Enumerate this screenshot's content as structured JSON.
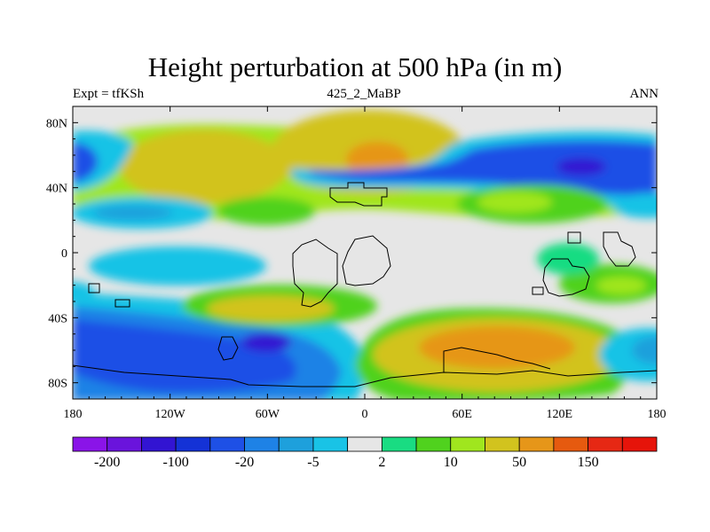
{
  "title": "Height perturbation at 500 hPa (in m)",
  "subtitle_left": "Expt = tfKSh",
  "subtitle_center": "425_2_MaBP",
  "subtitle_right": "ANN",
  "chart_data": {
    "type": "heatmap",
    "projection": "cylindrical equidistant",
    "title": "Height perturbation at 500 hPa (in m)",
    "xlabel": "",
    "ylabel": "",
    "xlim": [
      -180,
      180
    ],
    "ylim": [
      -90,
      90
    ],
    "x_ticks": [
      {
        "value": -180,
        "label": "180"
      },
      {
        "value": -120,
        "label": "120W"
      },
      {
        "value": -60,
        "label": "60W"
      },
      {
        "value": 0,
        "label": "0"
      },
      {
        "value": 60,
        "label": "60E"
      },
      {
        "value": 120,
        "label": "120E"
      },
      {
        "value": 180,
        "label": "180"
      }
    ],
    "y_ticks": [
      {
        "value": 80,
        "label": "80N"
      },
      {
        "value": 40,
        "label": "40N"
      },
      {
        "value": 0,
        "label": "0"
      },
      {
        "value": -40,
        "label": "40S"
      },
      {
        "value": -80,
        "label": "80S"
      }
    ],
    "colorbar": {
      "orientation": "horizontal",
      "levels": [
        -200,
        -150,
        -100,
        -50,
        -20,
        -10,
        -5,
        -2,
        2,
        5,
        10,
        20,
        50,
        100,
        150,
        200
      ],
      "labeled_levels": [
        {
          "index": 1,
          "label": "-200"
        },
        {
          "index": 3,
          "label": "-100"
        },
        {
          "index": 5,
          "label": "-20"
        },
        {
          "index": 7,
          "label": "-5"
        },
        {
          "index": 9,
          "label": "2"
        },
        {
          "index": 11,
          "label": "10"
        },
        {
          "index": 13,
          "label": "50"
        },
        {
          "index": 15,
          "label": "150"
        }
      ],
      "colors": [
        "#8a14e8",
        "#6a14dc",
        "#3214d2",
        "#1432d6",
        "#1e50e6",
        "#1e82e6",
        "#1ea0dc",
        "#19c3e6",
        "#e6e6e6",
        "#19dc82",
        "#50d21e",
        "#a0e61e",
        "#d2c31e",
        "#e69619",
        "#e65a0f",
        "#e62814",
        "#e6140a"
      ]
    },
    "field_features": [
      {
        "lon": -120,
        "lat": 55,
        "level_index": 12,
        "description": "positive anomaly N Pacific"
      },
      {
        "lon": 10,
        "lat": 55,
        "level_index": 13,
        "description": "positive anomaly N Atlantic/Europe"
      },
      {
        "lon": 110,
        "lat": 55,
        "level_index": 3,
        "description": "negative anomaly Siberia"
      },
      {
        "lon": -175,
        "lat": 57,
        "level_index": 4,
        "description": "negative anomaly dateline high latitudes"
      },
      {
        "lon": 80,
        "lat": -60,
        "level_index": 13,
        "description": "positive anomaly S Indian Ocean"
      },
      {
        "lon": -90,
        "lat": -58,
        "level_index": 4,
        "description": "negative anomaly S Pacific"
      },
      {
        "lon": -90,
        "lat": -35,
        "level_index": 12,
        "description": "positive anomaly S Pacific subtropics"
      },
      {
        "lon": 155,
        "lat": -25,
        "level_index": 11,
        "description": "positive anomaly SW Pacific"
      },
      {
        "lon": -140,
        "lat": 28,
        "level_index": 6,
        "description": "negative anomaly subtropical N Pacific"
      },
      {
        "lon": 60,
        "lat": 35,
        "level_index": 10,
        "description": "positive anomaly Middle East"
      }
    ]
  }
}
